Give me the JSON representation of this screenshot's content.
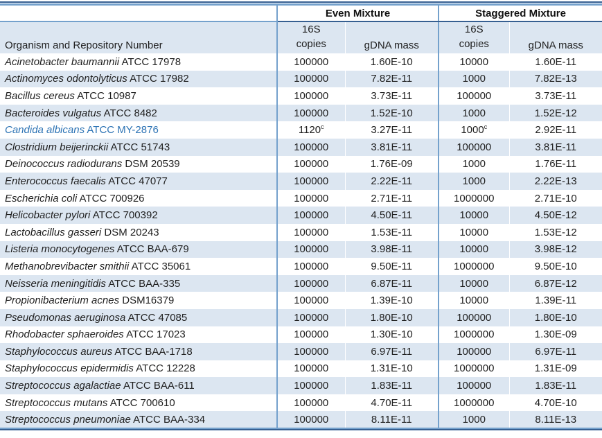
{
  "table": {
    "groups": [
      {
        "label": "Even Mixture"
      },
      {
        "label": "Staggered Mixture"
      }
    ],
    "organism_header": "Organism and Repository Number",
    "sub_headers": {
      "copies_line1": "16S",
      "copies_line2": "copies",
      "gdna": "gDNA mass"
    },
    "rows": [
      {
        "name": "Acinetobacter baumannii",
        "repo": "ATCC 17978",
        "even_copies": "100000",
        "even_gdna": "1.60E-10",
        "stag_copies": "10000",
        "stag_gdna": "1.60E-11"
      },
      {
        "name": "Actinomyces odontolyticus",
        "repo": "ATCC 17982",
        "even_copies": "100000",
        "even_gdna": "7.82E-11",
        "stag_copies": "1000",
        "stag_gdna": "7.82E-13"
      },
      {
        "name": "Bacillus cereus",
        "repo": "ATCC 10987",
        "even_copies": "100000",
        "even_gdna": "3.73E-11",
        "stag_copies": "100000",
        "stag_gdna": "3.73E-11"
      },
      {
        "name": "Bacteroides vulgatus",
        "repo": "ATCC 8482",
        "even_copies": "100000",
        "even_gdna": "1.52E-10",
        "stag_copies": "1000",
        "stag_gdna": "1.52E-12"
      },
      {
        "name": "Candida albicans",
        "repo": "ATCC MY-2876",
        "even_copies": "1120^c",
        "even_gdna": "3.27E-11",
        "stag_copies": "1000^c",
        "stag_gdna": "2.92E-11",
        "highlight": true
      },
      {
        "name": "Clostridium beijerinckii",
        "repo": "ATCC 51743",
        "even_copies": "100000",
        "even_gdna": "3.81E-11",
        "stag_copies": "100000",
        "stag_gdna": "3.81E-11"
      },
      {
        "name": "Deinococcus radiodurans",
        "repo": "DSM 20539",
        "even_copies": "100000",
        "even_gdna": "1.76E-09",
        "stag_copies": "1000",
        "stag_gdna": "1.76E-11"
      },
      {
        "name": "Enterococcus faecalis",
        "repo": "ATCC 47077",
        "even_copies": "100000",
        "even_gdna": "2.22E-11",
        "stag_copies": "1000",
        "stag_gdna": "2.22E-13"
      },
      {
        "name": "Escherichia coli",
        "repo": "ATCC 700926",
        "even_copies": "100000",
        "even_gdna": "2.71E-11",
        "stag_copies": "1000000",
        "stag_gdna": "2.71E-10"
      },
      {
        "name": "Helicobacter pylori",
        "repo": "ATCC 700392",
        "even_copies": "100000",
        "even_gdna": "4.50E-11",
        "stag_copies": "10000",
        "stag_gdna": "4.50E-12"
      },
      {
        "name": "Lactobacillus gasseri",
        "repo": "DSM 20243",
        "even_copies": "100000",
        "even_gdna": "1.53E-11",
        "stag_copies": "10000",
        "stag_gdna": "1.53E-12"
      },
      {
        "name": "Listeria monocytogenes",
        "repo": "ATCC BAA-679",
        "even_copies": "100000",
        "even_gdna": "3.98E-11",
        "stag_copies": "10000",
        "stag_gdna": "3.98E-12"
      },
      {
        "name": "Methanobrevibacter smithii",
        "repo": "ATCC 35061",
        "even_copies": "100000",
        "even_gdna": "9.50E-11",
        "stag_copies": "1000000",
        "stag_gdna": "9.50E-10"
      },
      {
        "name": "Neisseria meningitidis",
        "repo": "ATCC BAA-335",
        "even_copies": "100000",
        "even_gdna": "6.87E-11",
        "stag_copies": "10000",
        "stag_gdna": "6.87E-12"
      },
      {
        "name": "Propionibacterium acnes",
        "repo": "DSM16379",
        "even_copies": "100000",
        "even_gdna": "1.39E-10",
        "stag_copies": "10000",
        "stag_gdna": "1.39E-11"
      },
      {
        "name": "Pseudomonas aeruginosa",
        "repo": "ATCC 47085",
        "even_copies": "100000",
        "even_gdna": "1.80E-10",
        "stag_copies": "100000",
        "stag_gdna": "1.80E-10"
      },
      {
        "name": "Rhodobacter sphaeroides",
        "repo": "ATCC 17023",
        "even_copies": "100000",
        "even_gdna": "1.30E-10",
        "stag_copies": "1000000",
        "stag_gdna": "1.30E-09"
      },
      {
        "name": "Staphylococcus aureus",
        "repo": "ATCC BAA-1718",
        "even_copies": "100000",
        "even_gdna": "6.97E-11",
        "stag_copies": "100000",
        "stag_gdna": "6.97E-11"
      },
      {
        "name": "Staphylococcus epidermidis",
        "repo": "ATCC 12228",
        "even_copies": "100000",
        "even_gdna": "1.31E-10",
        "stag_copies": "1000000",
        "stag_gdna": "1.31E-09"
      },
      {
        "name": "Streptococcus agalactiae",
        "repo": "ATCC BAA-611",
        "even_copies": "100000",
        "even_gdna": "1.83E-11",
        "stag_copies": "100000",
        "stag_gdna": "1.83E-11"
      },
      {
        "name": "Streptococcus mutans",
        "repo": "ATCC 700610",
        "even_copies": "100000",
        "even_gdna": "4.70E-11",
        "stag_copies": "1000000",
        "stag_gdna": "4.70E-10"
      },
      {
        "name": "Streptococcus pneumoniae",
        "repo": "ATCC BAA-334",
        "even_copies": "100000",
        "even_gdna": "8.11E-11",
        "stag_copies": "1000",
        "stag_gdna": "8.11E-13"
      }
    ]
  },
  "colors": {
    "row_alt": "#DCE6F1",
    "border_blue": "#74A1CC",
    "border_navy": "#365F91",
    "highlight_text": "#2E74B5"
  }
}
